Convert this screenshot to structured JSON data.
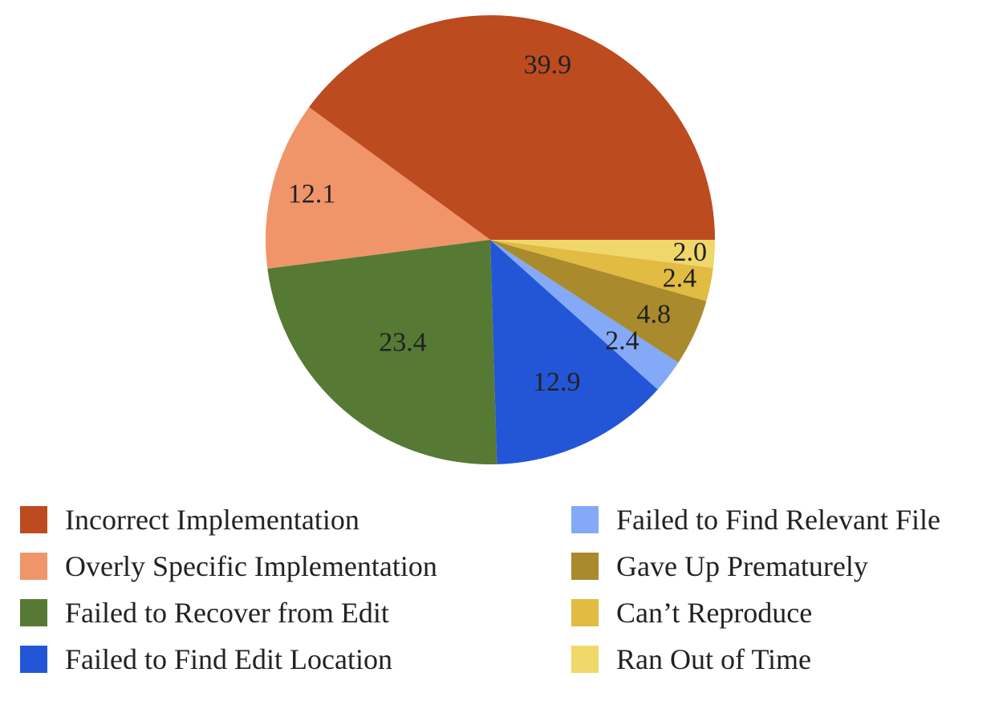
{
  "chart_data": {
    "type": "pie",
    "title": "",
    "slices": [
      {
        "label": "Incorrect Implementation",
        "value": 39.9,
        "color": "#BD4B20"
      },
      {
        "label": "Overly Specific Implementation",
        "value": 12.1,
        "color": "#F0956A"
      },
      {
        "label": "Failed to Recover from Edit",
        "value": 23.4,
        "color": "#567A33"
      },
      {
        "label": "Failed to Find Edit Location",
        "value": 12.9,
        "color": "#2356D6"
      },
      {
        "label": "Failed to Find Relevant File",
        "value": 2.4,
        "color": "#84A9F7"
      },
      {
        "label": "Gave Up Prematurely",
        "value": 4.8,
        "color": "#A98A2C"
      },
      {
        "label": "Can’t Reproduce",
        "value": 2.4,
        "color": "#E1BB42"
      },
      {
        "label": "Ran Out of Time",
        "value": 2.0,
        "color": "#F0D76A"
      }
    ],
    "data_labels_shown": true,
    "legend_placement": "bottom"
  }
}
